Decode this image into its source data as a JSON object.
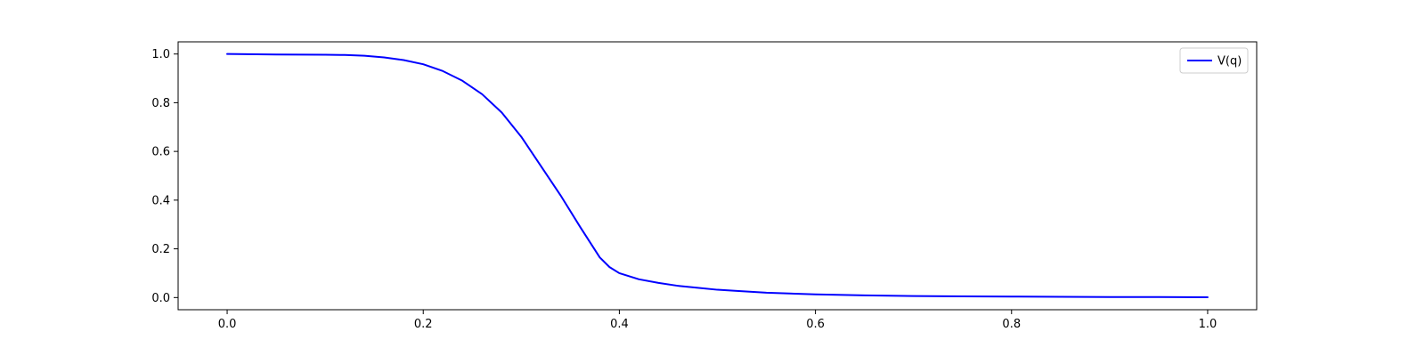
{
  "chart_data": {
    "type": "line",
    "title": "",
    "xlabel": "",
    "ylabel": "",
    "xlim": [
      -0.05,
      1.05
    ],
    "ylim": [
      -0.05,
      1.05
    ],
    "x_ticks": [
      0.0,
      0.2,
      0.4,
      0.6,
      0.8,
      1.0
    ],
    "x_tick_labels": [
      "0.0",
      "0.2",
      "0.4",
      "0.6",
      "0.8",
      "1.0"
    ],
    "y_ticks": [
      0.0,
      0.2,
      0.4,
      0.6,
      0.8,
      1.0
    ],
    "y_tick_labels": [
      "0.0",
      "0.2",
      "0.4",
      "0.6",
      "0.8",
      "1.0"
    ],
    "grid": false,
    "legend_position": "top-right",
    "series": [
      {
        "name": "V(q)",
        "color": "#0000ff",
        "x": [
          0.0,
          0.05,
          0.1,
          0.12,
          0.14,
          0.16,
          0.18,
          0.2,
          0.22,
          0.24,
          0.26,
          0.28,
          0.3,
          0.32,
          0.34,
          0.36,
          0.38,
          0.39,
          0.4,
          0.42,
          0.44,
          0.46,
          0.48,
          0.5,
          0.52,
          0.55,
          0.6,
          0.65,
          0.7,
          0.75,
          0.8,
          0.85,
          0.9,
          0.95,
          1.0
        ],
        "y": [
          1.0,
          0.998,
          0.997,
          0.996,
          0.993,
          0.986,
          0.975,
          0.958,
          0.93,
          0.89,
          0.835,
          0.76,
          0.66,
          0.54,
          0.42,
          0.29,
          0.165,
          0.125,
          0.1,
          0.075,
          0.06,
          0.048,
          0.04,
          0.032,
          0.027,
          0.02,
          0.013,
          0.009,
          0.006,
          0.005,
          0.004,
          0.003,
          0.002,
          0.002,
          0.001
        ]
      }
    ]
  },
  "colors": {
    "axis": "#000000",
    "background": "#ffffff",
    "line": "#0000ff",
    "legend_border": "#cccccc"
  }
}
